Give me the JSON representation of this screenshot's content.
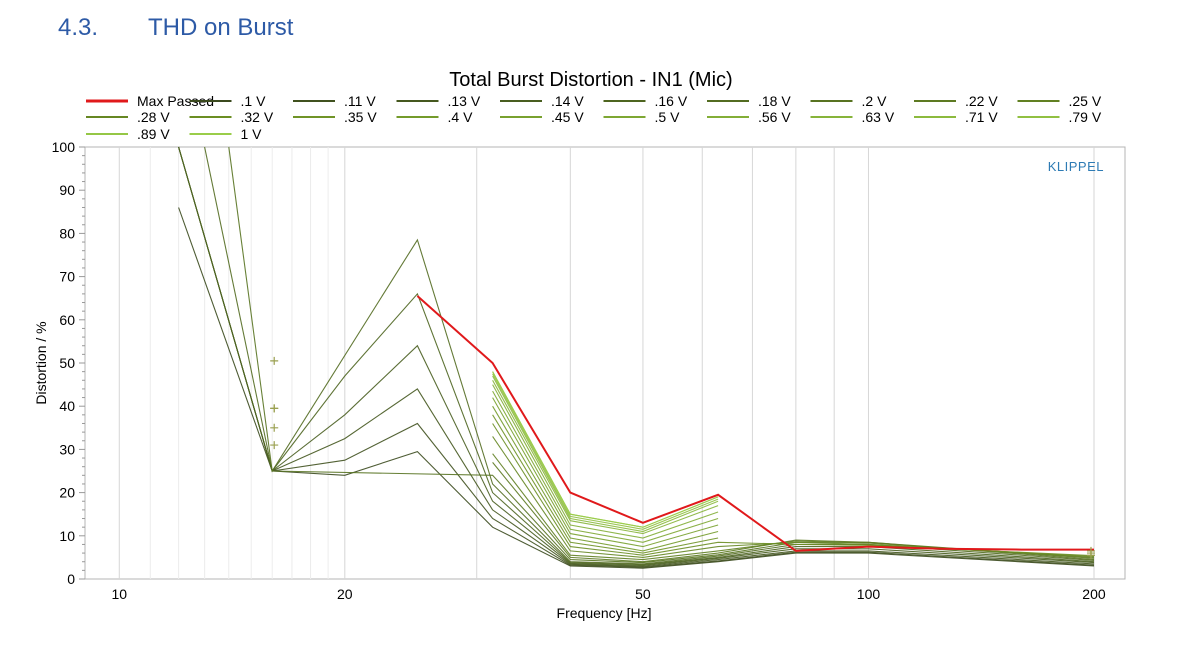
{
  "section": {
    "number": "4.3.",
    "title": "THD on Burst"
  },
  "chart_data": {
    "type": "line",
    "title": "Total Burst Distortion - IN1 (Mic)",
    "xlabel": "Frequency [Hz]",
    "ylabel": "Distortion / %",
    "xscale": "log",
    "xlim": [
      9,
      220
    ],
    "ylim": [
      0,
      100
    ],
    "xticks": [
      10,
      20,
      50,
      100,
      200
    ],
    "xtick_labels": [
      "10",
      "20",
      "50",
      "100",
      "200"
    ],
    "yticks": [
      0,
      10,
      20,
      30,
      40,
      50,
      60,
      70,
      80,
      90,
      100
    ],
    "ytick_labels": [
      "0",
      "10",
      "20",
      "30",
      "40",
      "50",
      "60",
      "70",
      "80",
      "90",
      "100"
    ],
    "grid": true,
    "legend_position": "top",
    "watermark": "KLIPPEL",
    "colors": {
      "max_passed": "#e0191b",
      "low_voltage": "#3b4a1e",
      "mid_voltage": "#6b8e23",
      "high_voltage": "#9acd4a",
      "section_heading": "#2d5aa6",
      "watermark": "#2e7bb4"
    },
    "max_passed": {
      "name": "Max Passed",
      "x": [
        25,
        31.5,
        40,
        50,
        63,
        80,
        100,
        125,
        160,
        200
      ],
      "y": [
        65.5,
        50,
        20,
        13,
        19.5,
        6.5,
        7.5,
        7,
        6.8,
        6.8
      ]
    },
    "series": [
      {
        "name": ".1 V",
        "x": [
          12,
          16,
          20,
          25,
          31.5,
          40,
          50,
          63,
          80,
          100,
          200
        ],
        "y": [
          86,
          25,
          24,
          29.5,
          12,
          3,
          2.5,
          4,
          6,
          6,
          3
        ]
      },
      {
        "name": ".11 V",
        "x": [
          12,
          16,
          20,
          25,
          31.5,
          40,
          50,
          63,
          80,
          100,
          200
        ],
        "y": [
          100,
          25,
          27.5,
          36,
          14,
          3.2,
          2.7,
          4.2,
          6.2,
          6.2,
          3.2
        ]
      },
      {
        "name": ".13 V",
        "x": [
          12,
          16,
          20,
          25,
          31.5,
          40,
          50,
          63,
          80,
          100,
          200
        ],
        "y": [
          100,
          25,
          32.5,
          44,
          16,
          3.4,
          2.9,
          4.5,
          6.5,
          6.5,
          3.5
        ]
      },
      {
        "name": ".14 V",
        "x": [
          12,
          16,
          20,
          25,
          31.5,
          40,
          50,
          63,
          80,
          100,
          200
        ],
        "y": [
          100,
          25,
          38,
          54,
          18,
          3.6,
          3.1,
          4.8,
          7,
          7,
          3.8
        ]
      },
      {
        "name": ".16 V",
        "x": [
          12,
          16,
          20,
          25,
          31.5,
          40,
          50,
          63,
          80,
          100,
          200
        ],
        "y": [
          100,
          25,
          47,
          66,
          20,
          3.8,
          3.3,
          5,
          7.5,
          7.5,
          4
        ]
      },
      {
        "name": ".18 V",
        "x": [
          13,
          16,
          25,
          31.5,
          40,
          50,
          63,
          80,
          100,
          200
        ],
        "y": [
          100,
          25,
          78.5,
          22,
          4,
          3.5,
          5.3,
          8,
          8,
          4.3
        ]
      },
      {
        "name": ".2 V",
        "x": [
          14,
          16,
          31.5,
          40,
          50,
          63,
          80,
          100,
          200
        ],
        "y": [
          100,
          25,
          24,
          4.5,
          3.8,
          5.6,
          8.5,
          8.5,
          4.5
        ]
      },
      {
        "name": ".22 V",
        "x": [
          31.5,
          40,
          50,
          63,
          80,
          100,
          200
        ],
        "y": [
          27,
          5,
          4,
          6,
          9,
          8.5,
          4.8
        ]
      },
      {
        "name": ".25 V",
        "x": [
          31.5,
          40,
          50,
          63,
          80,
          100,
          200
        ],
        "y": [
          29,
          5.5,
          4.5,
          6.5,
          8.8,
          8.3,
          5
        ]
      },
      {
        "name": ".28 V",
        "x": [
          31.5,
          40,
          50,
          63,
          80,
          100,
          200
        ],
        "y": [
          33,
          6.5,
          5,
          7.5,
          8.5,
          8,
          5.2
        ]
      },
      {
        "name": ".32 V",
        "x": [
          31.5,
          40,
          50,
          63,
          80,
          100,
          200
        ],
        "y": [
          36,
          7.5,
          5.5,
          8.5,
          8,
          7.8,
          5.4
        ]
      },
      {
        "name": ".35 V",
        "x": [
          31.5,
          40,
          50,
          63
        ],
        "y": [
          38,
          8.5,
          6,
          9.5
        ]
      },
      {
        "name": ".4 V",
        "x": [
          31.5,
          40,
          50,
          63
        ],
        "y": [
          40,
          9.5,
          6.5,
          11
        ]
      },
      {
        "name": ".45 V",
        "x": [
          31.5,
          40,
          50,
          63
        ],
        "y": [
          42,
          10.5,
          7.5,
          12.5
        ]
      },
      {
        "name": ".5 V",
        "x": [
          31.5,
          40,
          50,
          63
        ],
        "y": [
          43.5,
          11.5,
          8.5,
          14
        ]
      },
      {
        "name": ".56 V",
        "x": [
          31.5,
          40,
          50,
          63
        ],
        "y": [
          45,
          12.5,
          9.5,
          15.5
        ]
      },
      {
        "name": ".63 V",
        "x": [
          31.5,
          40,
          50,
          63
        ],
        "y": [
          46,
          13.5,
          10.5,
          17
        ]
      },
      {
        "name": ".71 V",
        "x": [
          31.5,
          40,
          50,
          63
        ],
        "y": [
          47,
          14,
          11,
          18
        ]
      },
      {
        "name": ".79 V",
        "x": [
          31.5,
          40,
          50,
          63
        ],
        "y": [
          47.5,
          14.5,
          11.5,
          18.5
        ]
      },
      {
        "name": ".89 V",
        "x": [
          31.5,
          40,
          50,
          63
        ],
        "y": [
          48,
          15,
          12,
          19
        ]
      },
      {
        "name": "1 V",
        "x": [
          31.5,
          40,
          50,
          63
        ],
        "y": [
          48,
          15,
          12,
          19
        ]
      }
    ],
    "markers": {
      "x": [
        16,
        16,
        16,
        16,
        16,
        200,
        200,
        200
      ],
      "y": [
        50.5,
        39.5,
        39.5,
        35,
        31,
        6.5,
        6,
        5.5
      ]
    }
  }
}
